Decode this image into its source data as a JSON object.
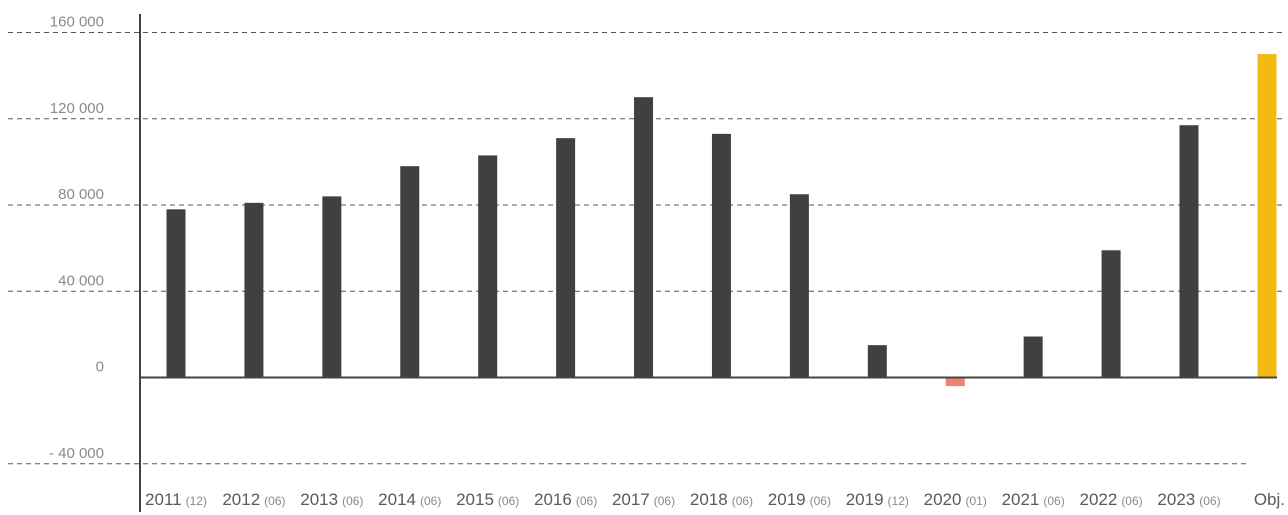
{
  "chart_data": {
    "type": "bar",
    "title": "",
    "xlabel": "",
    "ylabel": "",
    "ylim": [
      -40000,
      160000
    ],
    "grid": true,
    "yticks": [
      {
        "value": 160000,
        "label": "160 000"
      },
      {
        "value": 120000,
        "label": "120 000"
      },
      {
        "value": 80000,
        "label": "80 000"
      },
      {
        "value": 40000,
        "label": "40 000"
      },
      {
        "value": 0,
        "label": "0"
      },
      {
        "value": -40000,
        "label": "- 40 000"
      }
    ],
    "categories": [
      {
        "year": "2011",
        "sub": "(12)"
      },
      {
        "year": "2012",
        "sub": "(06)"
      },
      {
        "year": "2013",
        "sub": "(06)"
      },
      {
        "year": "2014",
        "sub": "(06)"
      },
      {
        "year": "2015",
        "sub": "(06)"
      },
      {
        "year": "2016",
        "sub": "(06)"
      },
      {
        "year": "2017",
        "sub": "(06)"
      },
      {
        "year": "2018",
        "sub": "(06)"
      },
      {
        "year": "2019",
        "sub": "(06)"
      },
      {
        "year": "2019",
        "sub": "(12)"
      },
      {
        "year": "2020",
        "sub": "(01)"
      },
      {
        "year": "2021",
        "sub": "(06)"
      },
      {
        "year": "2022",
        "sub": "(06)"
      },
      {
        "year": "2023",
        "sub": "(06)"
      },
      {
        "year": "Obj.",
        "sub": ""
      }
    ],
    "values": [
      78000,
      81000,
      84000,
      98000,
      103000,
      111000,
      130000,
      113000,
      85000,
      15000,
      -4000,
      19000,
      59000,
      117000,
      150000
    ],
    "colors": {
      "default": "#404040",
      "negative": "#f08070",
      "objective": "#f5b914",
      "axis": "#444444",
      "grid": "#555555"
    }
  }
}
